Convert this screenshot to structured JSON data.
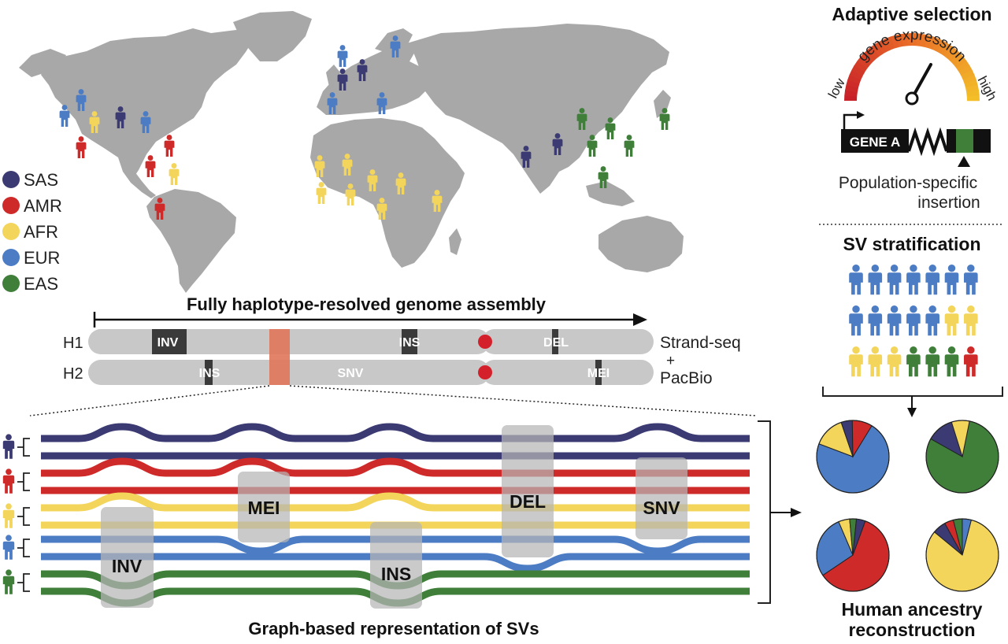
{
  "colors": {
    "SAS": "#3b3a72",
    "AMR": "#cf2a2a",
    "AFR": "#f3d55c",
    "EUR": "#4b7cc4",
    "EAS": "#3f7f3a",
    "land": "#a8a8a8",
    "chromosome": "#c8c8c8",
    "sv_box": "#b9b9b9"
  },
  "legend": {
    "items": [
      {
        "code": "SAS",
        "label": "SAS"
      },
      {
        "code": "AMR",
        "label": "AMR"
      },
      {
        "code": "AFR",
        "label": "AFR"
      },
      {
        "code": "EUR",
        "label": "EUR"
      },
      {
        "code": "EAS",
        "label": "EAS"
      }
    ]
  },
  "assembly": {
    "title": "Fully haplotype-resolved genome assembly",
    "h1_label": "H1",
    "h2_label": "H2",
    "h1_svs": [
      "INV",
      "INS",
      "DEL"
    ],
    "h2_svs": [
      "INS",
      "SNV",
      "MEI"
    ],
    "tech_line1": "Strand-seq",
    "tech_plus": "+",
    "tech_line2": "PacBio"
  },
  "graph": {
    "title": "Graph-based representation of SVs",
    "sv_boxes": [
      "INV",
      "MEI",
      "INS",
      "DEL",
      "SNV"
    ]
  },
  "adaptive": {
    "title": "Adaptive selection",
    "gauge_label": "gene expression",
    "low": "low",
    "high": "high",
    "gene": "GENE A",
    "caption_line1": "Population-specific",
    "caption_line2": "insertion"
  },
  "stratification": {
    "title": "SV stratification"
  },
  "ancestry": {
    "title_line1": "Human ancestry",
    "title_line2": "reconstruction",
    "pies": [
      {
        "slices": [
          {
            "pop": "EUR",
            "value": 0.72
          },
          {
            "pop": "AFR",
            "value": 0.14
          },
          {
            "pop": "SAS",
            "value": 0.05
          },
          {
            "pop": "AMR",
            "value": 0.09
          }
        ]
      },
      {
        "slices": [
          {
            "pop": "EAS",
            "value": 0.8
          },
          {
            "pop": "SAS",
            "value": 0.12
          },
          {
            "pop": "AFR",
            "value": 0.08
          }
        ]
      },
      {
        "slices": [
          {
            "pop": "AMR",
            "value": 0.6
          },
          {
            "pop": "EUR",
            "value": 0.28
          },
          {
            "pop": "AFR",
            "value": 0.05
          },
          {
            "pop": "EAS",
            "value": 0.03
          },
          {
            "pop": "SAS",
            "value": 0.04
          }
        ]
      },
      {
        "slices": [
          {
            "pop": "AFR",
            "value": 0.82
          },
          {
            "pop": "SAS",
            "value": 0.06
          },
          {
            "pop": "AMR",
            "value": 0.04
          },
          {
            "pop": "EAS",
            "value": 0.04
          },
          {
            "pop": "EUR",
            "value": 0.04
          }
        ]
      }
    ]
  }
}
